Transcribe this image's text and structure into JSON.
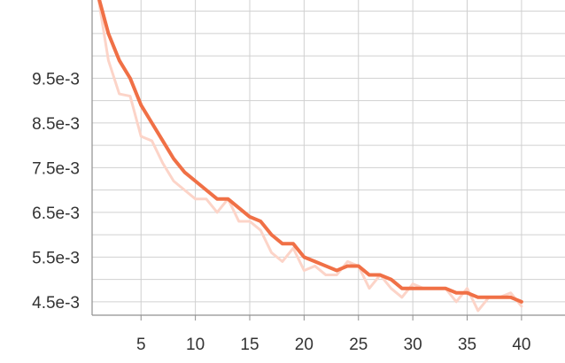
{
  "chart_data": {
    "type": "line",
    "title": "",
    "xlabel": "",
    "ylabel": "",
    "xlim": [
      0.5,
      44
    ],
    "ylim": [
      0.0042,
      0.01125
    ],
    "x_ticks": [
      5,
      10,
      15,
      20,
      25,
      30,
      35,
      40
    ],
    "x_tick_labels": [
      "5",
      "10",
      "15",
      "20",
      "25",
      "30",
      "35",
      "40"
    ],
    "y_ticks": [
      0.0045,
      0.0055,
      0.0065,
      0.0075,
      0.0085,
      0.0095
    ],
    "y_tick_labels": [
      "4.5e-3",
      "5.5e-3",
      "6.5e-3",
      "7.5e-3",
      "8.5e-3",
      "9.5e-3"
    ],
    "grid": true,
    "series": [
      {
        "role": "raw",
        "color": "#fcd4c8",
        "x": [
          1,
          2,
          3,
          4,
          5,
          6,
          7,
          8,
          9,
          10,
          11,
          12,
          13,
          14,
          15,
          16,
          17,
          18,
          19,
          20,
          21,
          22,
          23,
          24,
          25,
          26,
          27,
          28,
          29,
          30,
          31,
          32,
          33,
          34,
          35,
          36,
          37,
          38,
          39,
          40
        ],
        "y": [
          0.0114,
          0.0099,
          0.00915,
          0.0091,
          0.0082,
          0.0081,
          0.0076,
          0.0072,
          0.007,
          0.0068,
          0.0068,
          0.0065,
          0.0068,
          0.0063,
          0.0063,
          0.0061,
          0.0056,
          0.0054,
          0.0057,
          0.0052,
          0.0053,
          0.0051,
          0.0051,
          0.0054,
          0.0053,
          0.0048,
          0.0051,
          0.0048,
          0.0046,
          0.0049,
          0.0048,
          0.0048,
          0.0048,
          0.0045,
          0.0048,
          0.0043,
          0.0046,
          0.0046,
          0.0047,
          0.0044
        ]
      },
      {
        "role": "smoothed",
        "color": "#f07046",
        "x": [
          1,
          2,
          3,
          4,
          5,
          6,
          7,
          8,
          9,
          10,
          11,
          12,
          13,
          14,
          15,
          16,
          17,
          18,
          19,
          20,
          21,
          22,
          23,
          24,
          25,
          26,
          27,
          28,
          29,
          30,
          31,
          32,
          33,
          34,
          35,
          36,
          37,
          38,
          39,
          40
        ],
        "y": [
          0.0114,
          0.0105,
          0.0099,
          0.0095,
          0.0089,
          0.0085,
          0.0081,
          0.0077,
          0.0074,
          0.0072,
          0.007,
          0.0068,
          0.0068,
          0.0066,
          0.0064,
          0.0063,
          0.006,
          0.0058,
          0.0058,
          0.0055,
          0.0054,
          0.0053,
          0.0052,
          0.0053,
          0.0053,
          0.0051,
          0.0051,
          0.005,
          0.0048,
          0.0048,
          0.0048,
          0.0048,
          0.0048,
          0.0047,
          0.0047,
          0.0046,
          0.0046,
          0.0046,
          0.0046,
          0.0045
        ]
      }
    ]
  },
  "colors": {
    "grid": "#d0d0d0",
    "axis": "#909090",
    "tick_label": "#333333"
  }
}
